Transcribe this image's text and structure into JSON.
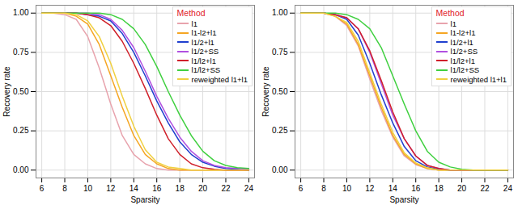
{
  "chart_data": [
    {
      "type": "line",
      "x_label": "Sparsity",
      "y_label": "Recovery rate",
      "legend_title": "Method",
      "legend": "top-right",
      "grid": true,
      "x": [
        6,
        7,
        8,
        9,
        10,
        11,
        12,
        13,
        14,
        15,
        16,
        17,
        18,
        19,
        20,
        21,
        22,
        23,
        24
      ],
      "xlim": [
        5.5,
        24.5
      ],
      "xticks": [
        6,
        8,
        10,
        12,
        14,
        16,
        18,
        20,
        22,
        24
      ],
      "ylim": [
        -0.05,
        1.05
      ],
      "yticks": [
        {
          "value": 0,
          "label": "0.00"
        },
        {
          "value": 0.25,
          "label": "0.25"
        },
        {
          "value": 0.5,
          "label": "0.50"
        },
        {
          "value": 0.75,
          "label": "0.75"
        },
        {
          "value": 1,
          "label": "1.00"
        }
      ],
      "series": [
        {
          "name": "l1",
          "color": "#e8a3ad",
          "values": [
            1,
            1,
            0.99,
            0.96,
            0.85,
            0.65,
            0.42,
            0.22,
            0.1,
            0.04,
            0.01,
            0,
            0,
            0,
            0,
            0,
            0,
            0,
            0
          ]
        },
        {
          "name": "l1-l2+l1",
          "color": "#f5a623",
          "values": [
            1,
            1,
            1,
            0.98,
            0.93,
            0.8,
            0.6,
            0.4,
            0.22,
            0.1,
            0.04,
            0.01,
            0,
            0,
            0,
            0,
            0,
            0,
            0
          ]
        },
        {
          "name": "l1/2+l1",
          "color": "#1f3fcf",
          "values": [
            1,
            1,
            1,
            1,
            0.99,
            0.98,
            0.95,
            0.87,
            0.75,
            0.6,
            0.44,
            0.3,
            0.18,
            0.1,
            0.05,
            0.025,
            0.01,
            0.005,
            0
          ]
        },
        {
          "name": "l1/2+SS",
          "color": "#b050e0",
          "values": [
            1,
            1,
            1,
            1,
            1,
            0.99,
            0.96,
            0.89,
            0.78,
            0.63,
            0.47,
            0.33,
            0.21,
            0.12,
            0.06,
            0.03,
            0.015,
            0.01,
            0.005
          ]
        },
        {
          "name": "l1/l2+l1",
          "color": "#d0202a",
          "values": [
            1,
            1,
            1,
            1,
            0.99,
            0.97,
            0.92,
            0.82,
            0.68,
            0.52,
            0.35,
            0.2,
            0.1,
            0.04,
            0.015,
            0.005,
            0,
            0,
            0
          ]
        },
        {
          "name": "l1/l2+SS",
          "color": "#40d040",
          "values": [
            1,
            1,
            1,
            1,
            1,
            1,
            0.99,
            0.96,
            0.9,
            0.8,
            0.66,
            0.5,
            0.35,
            0.22,
            0.12,
            0.06,
            0.03,
            0.015,
            0.01
          ]
        },
        {
          "name": "reweighted l1+l1",
          "color": "#f0d040",
          "values": [
            1,
            1,
            1,
            0.99,
            0.95,
            0.85,
            0.68,
            0.47,
            0.28,
            0.13,
            0.05,
            0.02,
            0.01,
            0,
            0,
            0,
            0,
            0,
            0
          ]
        }
      ]
    },
    {
      "type": "line",
      "x_label": "Sparsity",
      "y_label": "Recovery rate",
      "legend_title": "Method",
      "legend": "top-right",
      "grid": true,
      "x": [
        6,
        7,
        8,
        9,
        10,
        11,
        12,
        13,
        14,
        15,
        16,
        17,
        18,
        19,
        20,
        21,
        22,
        23,
        24
      ],
      "xlim": [
        5.5,
        24.5
      ],
      "xticks": [
        6,
        8,
        10,
        12,
        14,
        16,
        18,
        20,
        22,
        24
      ],
      "ylim": [
        -0.05,
        1.05
      ],
      "yticks": [
        {
          "value": 0,
          "label": "0.00"
        },
        {
          "value": 0.25,
          "label": "0.25"
        },
        {
          "value": 0.5,
          "label": "0.50"
        },
        {
          "value": 0.75,
          "label": "0.75"
        },
        {
          "value": 1,
          "label": "1.00"
        }
      ],
      "series": [
        {
          "name": "l1",
          "color": "#e8a3ad",
          "values": [
            1,
            1,
            1,
            0.98,
            0.92,
            0.79,
            0.58,
            0.38,
            0.21,
            0.09,
            0.035,
            0.01,
            0,
            0,
            0,
            0,
            0,
            0,
            0
          ]
        },
        {
          "name": "l1-l2+l1",
          "color": "#f5a623",
          "values": [
            1,
            1,
            1,
            0.98,
            0.93,
            0.8,
            0.6,
            0.4,
            0.22,
            0.1,
            0.04,
            0.01,
            0,
            0,
            0,
            0,
            0,
            0,
            0
          ]
        },
        {
          "name": "l1/2+l1",
          "color": "#1f3fcf",
          "values": [
            1,
            1,
            1,
            0.99,
            0.96,
            0.86,
            0.68,
            0.48,
            0.3,
            0.15,
            0.06,
            0.02,
            0.005,
            0,
            0,
            0,
            0,
            0,
            0
          ]
        },
        {
          "name": "l1/2+SS",
          "color": "#b050e0",
          "values": [
            1,
            1,
            1,
            0.99,
            0.97,
            0.9,
            0.75,
            0.55,
            0.35,
            0.2,
            0.09,
            0.03,
            0.01,
            0,
            0,
            0,
            0,
            0,
            0
          ]
        },
        {
          "name": "l1/l2+l1",
          "color": "#d0202a",
          "values": [
            1,
            1,
            1,
            0.99,
            0.97,
            0.9,
            0.76,
            0.57,
            0.37,
            0.2,
            0.09,
            0.03,
            0.01,
            0,
            0,
            0,
            0,
            0,
            0
          ]
        },
        {
          "name": "l1/l2+SS",
          "color": "#40d040",
          "values": [
            1,
            1,
            1,
            1,
            0.99,
            0.96,
            0.9,
            0.78,
            0.6,
            0.42,
            0.25,
            0.12,
            0.05,
            0.02,
            0.005,
            0,
            0,
            0,
            0
          ]
        },
        {
          "name": "reweighted l1+l1",
          "color": "#f0d040",
          "values": [
            1,
            1,
            1,
            0.98,
            0.94,
            0.82,
            0.62,
            0.42,
            0.24,
            0.11,
            0.045,
            0.015,
            0,
            0,
            0,
            0,
            0,
            0,
            0
          ]
        }
      ]
    }
  ]
}
